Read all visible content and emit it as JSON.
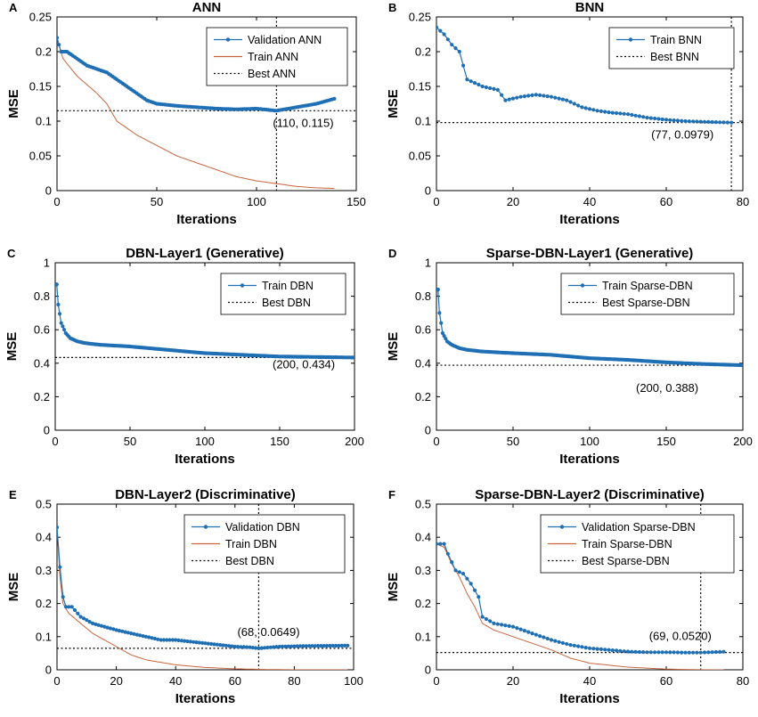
{
  "colors": {
    "validation": "#1f6fb4",
    "train": "#c8643c",
    "best": "#000000"
  },
  "chart_data": [
    {
      "id": "A",
      "panel_label": "A",
      "type": "line",
      "title": "ANN",
      "xlabel": "Iterations",
      "ylabel": "MSE",
      "xlim": [
        0,
        150
      ],
      "ylim": [
        0,
        0.25
      ],
      "xticks": [
        0,
        50,
        100,
        150
      ],
      "yticks": [
        0,
        0.05,
        0.1,
        0.15,
        0.2,
        0.25
      ],
      "ytick_labels": [
        "0",
        "0.05",
        "0.1",
        "0.15",
        "0.2",
        "0.25"
      ],
      "legend": [
        "Validation ANN",
        "Train ANN",
        "Best ANN"
      ],
      "best": {
        "x": 110,
        "y": 0.115,
        "label": "(110, 0.115)",
        "vline": true
      },
      "series": [
        {
          "name": "Validation ANN",
          "role": "validation",
          "n": 140,
          "knots": [
            [
              0,
              0.22
            ],
            [
              2,
              0.2
            ],
            [
              5,
              0.2
            ],
            [
              10,
              0.19
            ],
            [
              15,
              0.18
            ],
            [
              20,
              0.175
            ],
            [
              25,
              0.17
            ],
            [
              30,
              0.16
            ],
            [
              35,
              0.15
            ],
            [
              40,
              0.14
            ],
            [
              45,
              0.13
            ],
            [
              50,
              0.125
            ],
            [
              60,
              0.122
            ],
            [
              70,
              0.12
            ],
            [
              80,
              0.118
            ],
            [
              90,
              0.117
            ],
            [
              100,
              0.118
            ],
            [
              110,
              0.115
            ],
            [
              120,
              0.12
            ],
            [
              130,
              0.125
            ],
            [
              140,
              0.133
            ]
          ]
        },
        {
          "name": "Train ANN",
          "role": "train",
          "n": 140,
          "knots": [
            [
              0,
              0.22
            ],
            [
              3,
              0.19
            ],
            [
              10,
              0.165
            ],
            [
              20,
              0.14
            ],
            [
              25,
              0.125
            ],
            [
              30,
              0.1
            ],
            [
              40,
              0.08
            ],
            [
              50,
              0.065
            ],
            [
              60,
              0.05
            ],
            [
              70,
              0.04
            ],
            [
              80,
              0.03
            ],
            [
              90,
              0.02
            ],
            [
              100,
              0.014
            ],
            [
              110,
              0.01
            ],
            [
              120,
              0.006
            ],
            [
              130,
              0.004
            ],
            [
              140,
              0.003
            ]
          ]
        }
      ]
    },
    {
      "id": "B",
      "panel_label": "B",
      "type": "line",
      "title": "BNN",
      "xlabel": "Iterations",
      "ylabel": "MSE",
      "xlim": [
        0,
        80
      ],
      "ylim": [
        0,
        0.25
      ],
      "xticks": [
        0,
        20,
        40,
        60,
        80
      ],
      "yticks": [
        0,
        0.05,
        0.1,
        0.15,
        0.2,
        0.25
      ],
      "ytick_labels": [
        "0",
        "0.05",
        "0.1",
        "0.15",
        "0.2",
        "0.25"
      ],
      "legend": [
        "Train BNN",
        "Best BNN"
      ],
      "best": {
        "x": 77,
        "y": 0.0979,
        "label": "(77, 0.0979)",
        "vline": true
      },
      "series": [
        {
          "name": "Train BNN",
          "role": "validation",
          "n": 78,
          "knots": [
            [
              0,
              0.235
            ],
            [
              2,
              0.225
            ],
            [
              4,
              0.21
            ],
            [
              6,
              0.2
            ],
            [
              8,
              0.16
            ],
            [
              10,
              0.155
            ],
            [
              12,
              0.15
            ],
            [
              16,
              0.145
            ],
            [
              18,
              0.13
            ],
            [
              22,
              0.135
            ],
            [
              26,
              0.138
            ],
            [
              30,
              0.135
            ],
            [
              34,
              0.13
            ],
            [
              38,
              0.12
            ],
            [
              42,
              0.115
            ],
            [
              46,
              0.112
            ],
            [
              50,
              0.11
            ],
            [
              55,
              0.105
            ],
            [
              60,
              0.102
            ],
            [
              65,
              0.1
            ],
            [
              70,
              0.099
            ],
            [
              77,
              0.0979
            ]
          ]
        }
      ]
    },
    {
      "id": "C",
      "panel_label": "C",
      "type": "line",
      "title": "DBN-Layer1 (Generative)",
      "xlabel": "Iterations",
      "ylabel": "MSE",
      "xlim": [
        0,
        200
      ],
      "ylim": [
        0,
        1
      ],
      "xticks": [
        0,
        50,
        100,
        150,
        200
      ],
      "yticks": [
        0,
        0.2,
        0.4,
        0.6,
        0.8,
        1
      ],
      "ytick_labels": [
        "0",
        "0.2",
        "0.4",
        "0.6",
        "0.8",
        "1"
      ],
      "legend": [
        "Train DBN",
        "Best DBN"
      ],
      "best": {
        "x": 200,
        "y": 0.434,
        "label": "(200, 0.434)",
        "vline": false
      },
      "series": [
        {
          "name": "Train DBN",
          "role": "validation",
          "n": 200,
          "knots": [
            [
              1,
              0.87
            ],
            [
              2,
              0.75
            ],
            [
              4,
              0.64
            ],
            [
              7,
              0.58
            ],
            [
              10,
              0.55
            ],
            [
              15,
              0.53
            ],
            [
              20,
              0.52
            ],
            [
              30,
              0.51
            ],
            [
              50,
              0.5
            ],
            [
              75,
              0.48
            ],
            [
              100,
              0.46
            ],
            [
              125,
              0.45
            ],
            [
              150,
              0.44
            ],
            [
              175,
              0.437
            ],
            [
              200,
              0.434
            ]
          ]
        }
      ]
    },
    {
      "id": "D",
      "panel_label": "D",
      "type": "line",
      "title": "Sparse-DBN-Layer1 (Generative)",
      "xlabel": "Iterations",
      "ylabel": "MSE",
      "xlim": [
        0,
        200
      ],
      "ylim": [
        0,
        1
      ],
      "xticks": [
        0,
        50,
        100,
        150,
        200
      ],
      "yticks": [
        0,
        0.2,
        0.4,
        0.6,
        0.8,
        1
      ],
      "ytick_labels": [
        "0",
        "0.2",
        "0.4",
        "0.6",
        "0.8",
        "1"
      ],
      "legend": [
        "Train Sparse-DBN",
        "Best Sparse-DBN"
      ],
      "best": {
        "x": 200,
        "y": 0.388,
        "label": "(200, 0.388)",
        "vline": false
      },
      "series": [
        {
          "name": "Train Sparse-DBN",
          "role": "validation",
          "n": 200,
          "knots": [
            [
              1,
              0.84
            ],
            [
              2,
              0.7
            ],
            [
              4,
              0.58
            ],
            [
              7,
              0.53
            ],
            [
              10,
              0.51
            ],
            [
              15,
              0.49
            ],
            [
              20,
              0.48
            ],
            [
              30,
              0.47
            ],
            [
              50,
              0.46
            ],
            [
              75,
              0.45
            ],
            [
              100,
              0.43
            ],
            [
              125,
              0.42
            ],
            [
              150,
              0.405
            ],
            [
              175,
              0.395
            ],
            [
              200,
              0.388
            ]
          ]
        }
      ]
    },
    {
      "id": "E",
      "panel_label": "E",
      "type": "line",
      "title": "DBN-Layer2 (Discriminative)",
      "xlabel": "Iterations",
      "ylabel": "MSE",
      "xlim": [
        0,
        100
      ],
      "ylim": [
        0,
        0.5
      ],
      "xticks": [
        0,
        20,
        40,
        60,
        80,
        100
      ],
      "yticks": [
        0,
        0.1,
        0.2,
        0.3,
        0.4,
        0.5
      ],
      "ytick_labels": [
        "0",
        "0.1",
        "0.2",
        "0.3",
        "0.4",
        "0.5"
      ],
      "legend": [
        "Validation DBN",
        "Train DBN",
        "Best DBN"
      ],
      "best": {
        "x": 68,
        "y": 0.0649,
        "label": "(68, 0.0649)",
        "vline": true
      },
      "series": [
        {
          "name": "Validation DBN",
          "role": "validation",
          "n": 99,
          "knots": [
            [
              0,
              0.43
            ],
            [
              1,
              0.31
            ],
            [
              2,
              0.22
            ],
            [
              3,
              0.19
            ],
            [
              5,
              0.19
            ],
            [
              8,
              0.16
            ],
            [
              12,
              0.14
            ],
            [
              16,
              0.13
            ],
            [
              20,
              0.12
            ],
            [
              25,
              0.11
            ],
            [
              30,
              0.1
            ],
            [
              35,
              0.09
            ],
            [
              40,
              0.09
            ],
            [
              45,
              0.085
            ],
            [
              50,
              0.08
            ],
            [
              55,
              0.075
            ],
            [
              60,
              0.07
            ],
            [
              65,
              0.068
            ],
            [
              68,
              0.0649
            ],
            [
              75,
              0.07
            ],
            [
              85,
              0.072
            ],
            [
              99,
              0.073
            ]
          ]
        },
        {
          "name": "Train DBN",
          "role": "train",
          "n": 99,
          "knots": [
            [
              0,
              0.43
            ],
            [
              1,
              0.28
            ],
            [
              2,
              0.2
            ],
            [
              4,
              0.17
            ],
            [
              8,
              0.14
            ],
            [
              12,
              0.11
            ],
            [
              16,
              0.09
            ],
            [
              20,
              0.07
            ],
            [
              25,
              0.045
            ],
            [
              30,
              0.03
            ],
            [
              40,
              0.015
            ],
            [
              50,
              0.007
            ],
            [
              60,
              0.003
            ],
            [
              70,
              0.001
            ],
            [
              80,
              0.0
            ],
            [
              99,
              0.0
            ]
          ]
        }
      ]
    },
    {
      "id": "F",
      "panel_label": "F",
      "type": "line",
      "title": "Sparse-DBN-Layer2 (Discriminative)",
      "xlabel": "Iterations",
      "ylabel": "MSE",
      "xlim": [
        0,
        80
      ],
      "ylim": [
        0,
        0.5
      ],
      "xticks": [
        0,
        20,
        40,
        60,
        80
      ],
      "yticks": [
        0,
        0.1,
        0.2,
        0.3,
        0.4,
        0.5
      ],
      "ytick_labels": [
        "0",
        "0.1",
        "0.2",
        "0.3",
        "0.4",
        "0.5"
      ],
      "legend": [
        "Validation Sparse-DBN",
        "Train Sparse-DBN",
        "Best Sparse-DBN"
      ],
      "best": {
        "x": 69,
        "y": 0.052,
        "label": "(69, 0.0520)",
        "vline": true
      },
      "series": [
        {
          "name": "Validation Sparse-DBN",
          "role": "validation",
          "n": 76,
          "knots": [
            [
              0,
              0.38
            ],
            [
              2,
              0.38
            ],
            [
              3,
              0.35
            ],
            [
              5,
              0.3
            ],
            [
              7,
              0.29
            ],
            [
              9,
              0.26
            ],
            [
              11,
              0.22
            ],
            [
              12,
              0.16
            ],
            [
              15,
              0.14
            ],
            [
              20,
              0.13
            ],
            [
              25,
              0.11
            ],
            [
              30,
              0.09
            ],
            [
              35,
              0.075
            ],
            [
              40,
              0.065
            ],
            [
              45,
              0.06
            ],
            [
              50,
              0.055
            ],
            [
              55,
              0.053
            ],
            [
              60,
              0.053
            ],
            [
              65,
              0.052
            ],
            [
              69,
              0.052
            ],
            [
              76,
              0.055
            ]
          ]
        },
        {
          "name": "Train Sparse-DBN",
          "role": "train",
          "n": 76,
          "knots": [
            [
              0,
              0.38
            ],
            [
              2,
              0.37
            ],
            [
              4,
              0.32
            ],
            [
              6,
              0.28
            ],
            [
              8,
              0.23
            ],
            [
              10,
              0.19
            ],
            [
              12,
              0.14
            ],
            [
              15,
              0.12
            ],
            [
              20,
              0.1
            ],
            [
              25,
              0.08
            ],
            [
              30,
              0.06
            ],
            [
              35,
              0.035
            ],
            [
              40,
              0.02
            ],
            [
              50,
              0.008
            ],
            [
              60,
              0.002
            ],
            [
              70,
              0.0
            ],
            [
              76,
              0.0
            ]
          ]
        }
      ]
    }
  ]
}
